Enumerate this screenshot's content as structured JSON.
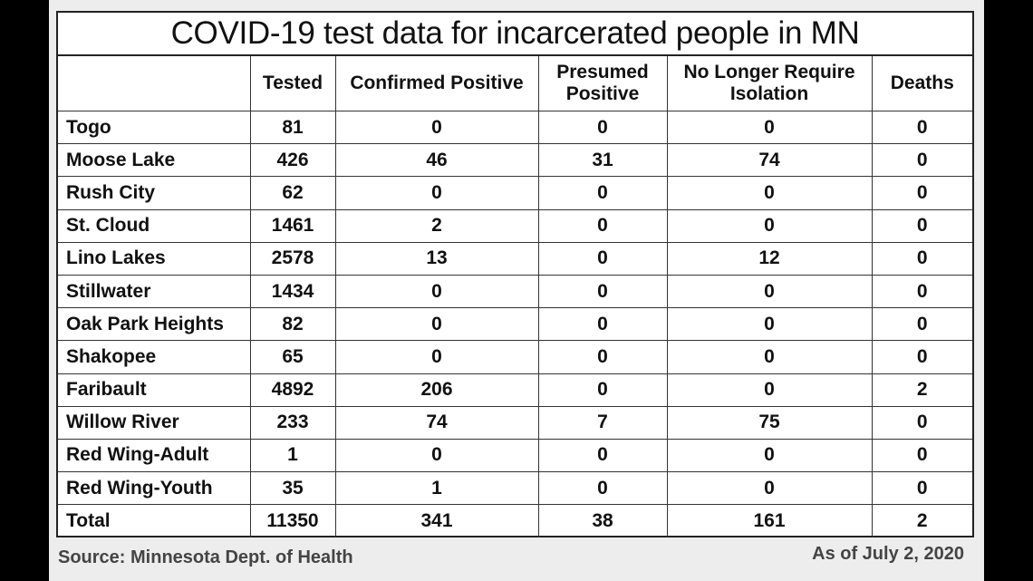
{
  "title": "COVID-19 test data for incarcerated people in MN",
  "headers": [
    "",
    "Tested",
    "Confirmed Positive",
    "Presumed Positive",
    "No Longer Require Isolation",
    "Deaths"
  ],
  "rows": [
    {
      "name": "Togo",
      "tested": "81",
      "confirmed": "0",
      "presumed": "0",
      "no_longer": "0",
      "deaths": "0"
    },
    {
      "name": "Moose Lake",
      "tested": "426",
      "confirmed": "46",
      "presumed": "31",
      "no_longer": "74",
      "deaths": "0"
    },
    {
      "name": "Rush City",
      "tested": "62",
      "confirmed": "0",
      "presumed": "0",
      "no_longer": "0",
      "deaths": "0"
    },
    {
      "name": "St. Cloud",
      "tested": "1461",
      "confirmed": "2",
      "presumed": "0",
      "no_longer": "0",
      "deaths": "0"
    },
    {
      "name": "Lino Lakes",
      "tested": "2578",
      "confirmed": "13",
      "presumed": "0",
      "no_longer": "12",
      "deaths": "0"
    },
    {
      "name": "Stillwater",
      "tested": "1434",
      "confirmed": "0",
      "presumed": "0",
      "no_longer": "0",
      "deaths": "0"
    },
    {
      "name": "Oak Park Heights",
      "tested": "82",
      "confirmed": "0",
      "presumed": "0",
      "no_longer": "0",
      "deaths": "0"
    },
    {
      "name": "Shakopee",
      "tested": "65",
      "confirmed": "0",
      "presumed": "0",
      "no_longer": "0",
      "deaths": "0"
    },
    {
      "name": "Faribault",
      "tested": "4892",
      "confirmed": "206",
      "presumed": "0",
      "no_longer": "0",
      "deaths": "2"
    },
    {
      "name": "Willow River",
      "tested": "233",
      "confirmed": "74",
      "presumed": "7",
      "no_longer": "75",
      "deaths": "0"
    },
    {
      "name": "Red Wing-Adult",
      "tested": "1",
      "confirmed": "0",
      "presumed": "0",
      "no_longer": "0",
      "deaths": "0"
    },
    {
      "name": "Red Wing-Youth",
      "tested": "35",
      "confirmed": "1",
      "presumed": "0",
      "no_longer": "0",
      "deaths": "0"
    },
    {
      "name": "Total",
      "tested": "11350",
      "confirmed": "341",
      "presumed": "38",
      "no_longer": "161",
      "deaths": "2"
    }
  ],
  "source": "Source: Minnesota Dept. of Health",
  "as_of": "As of July 2, 2020"
}
